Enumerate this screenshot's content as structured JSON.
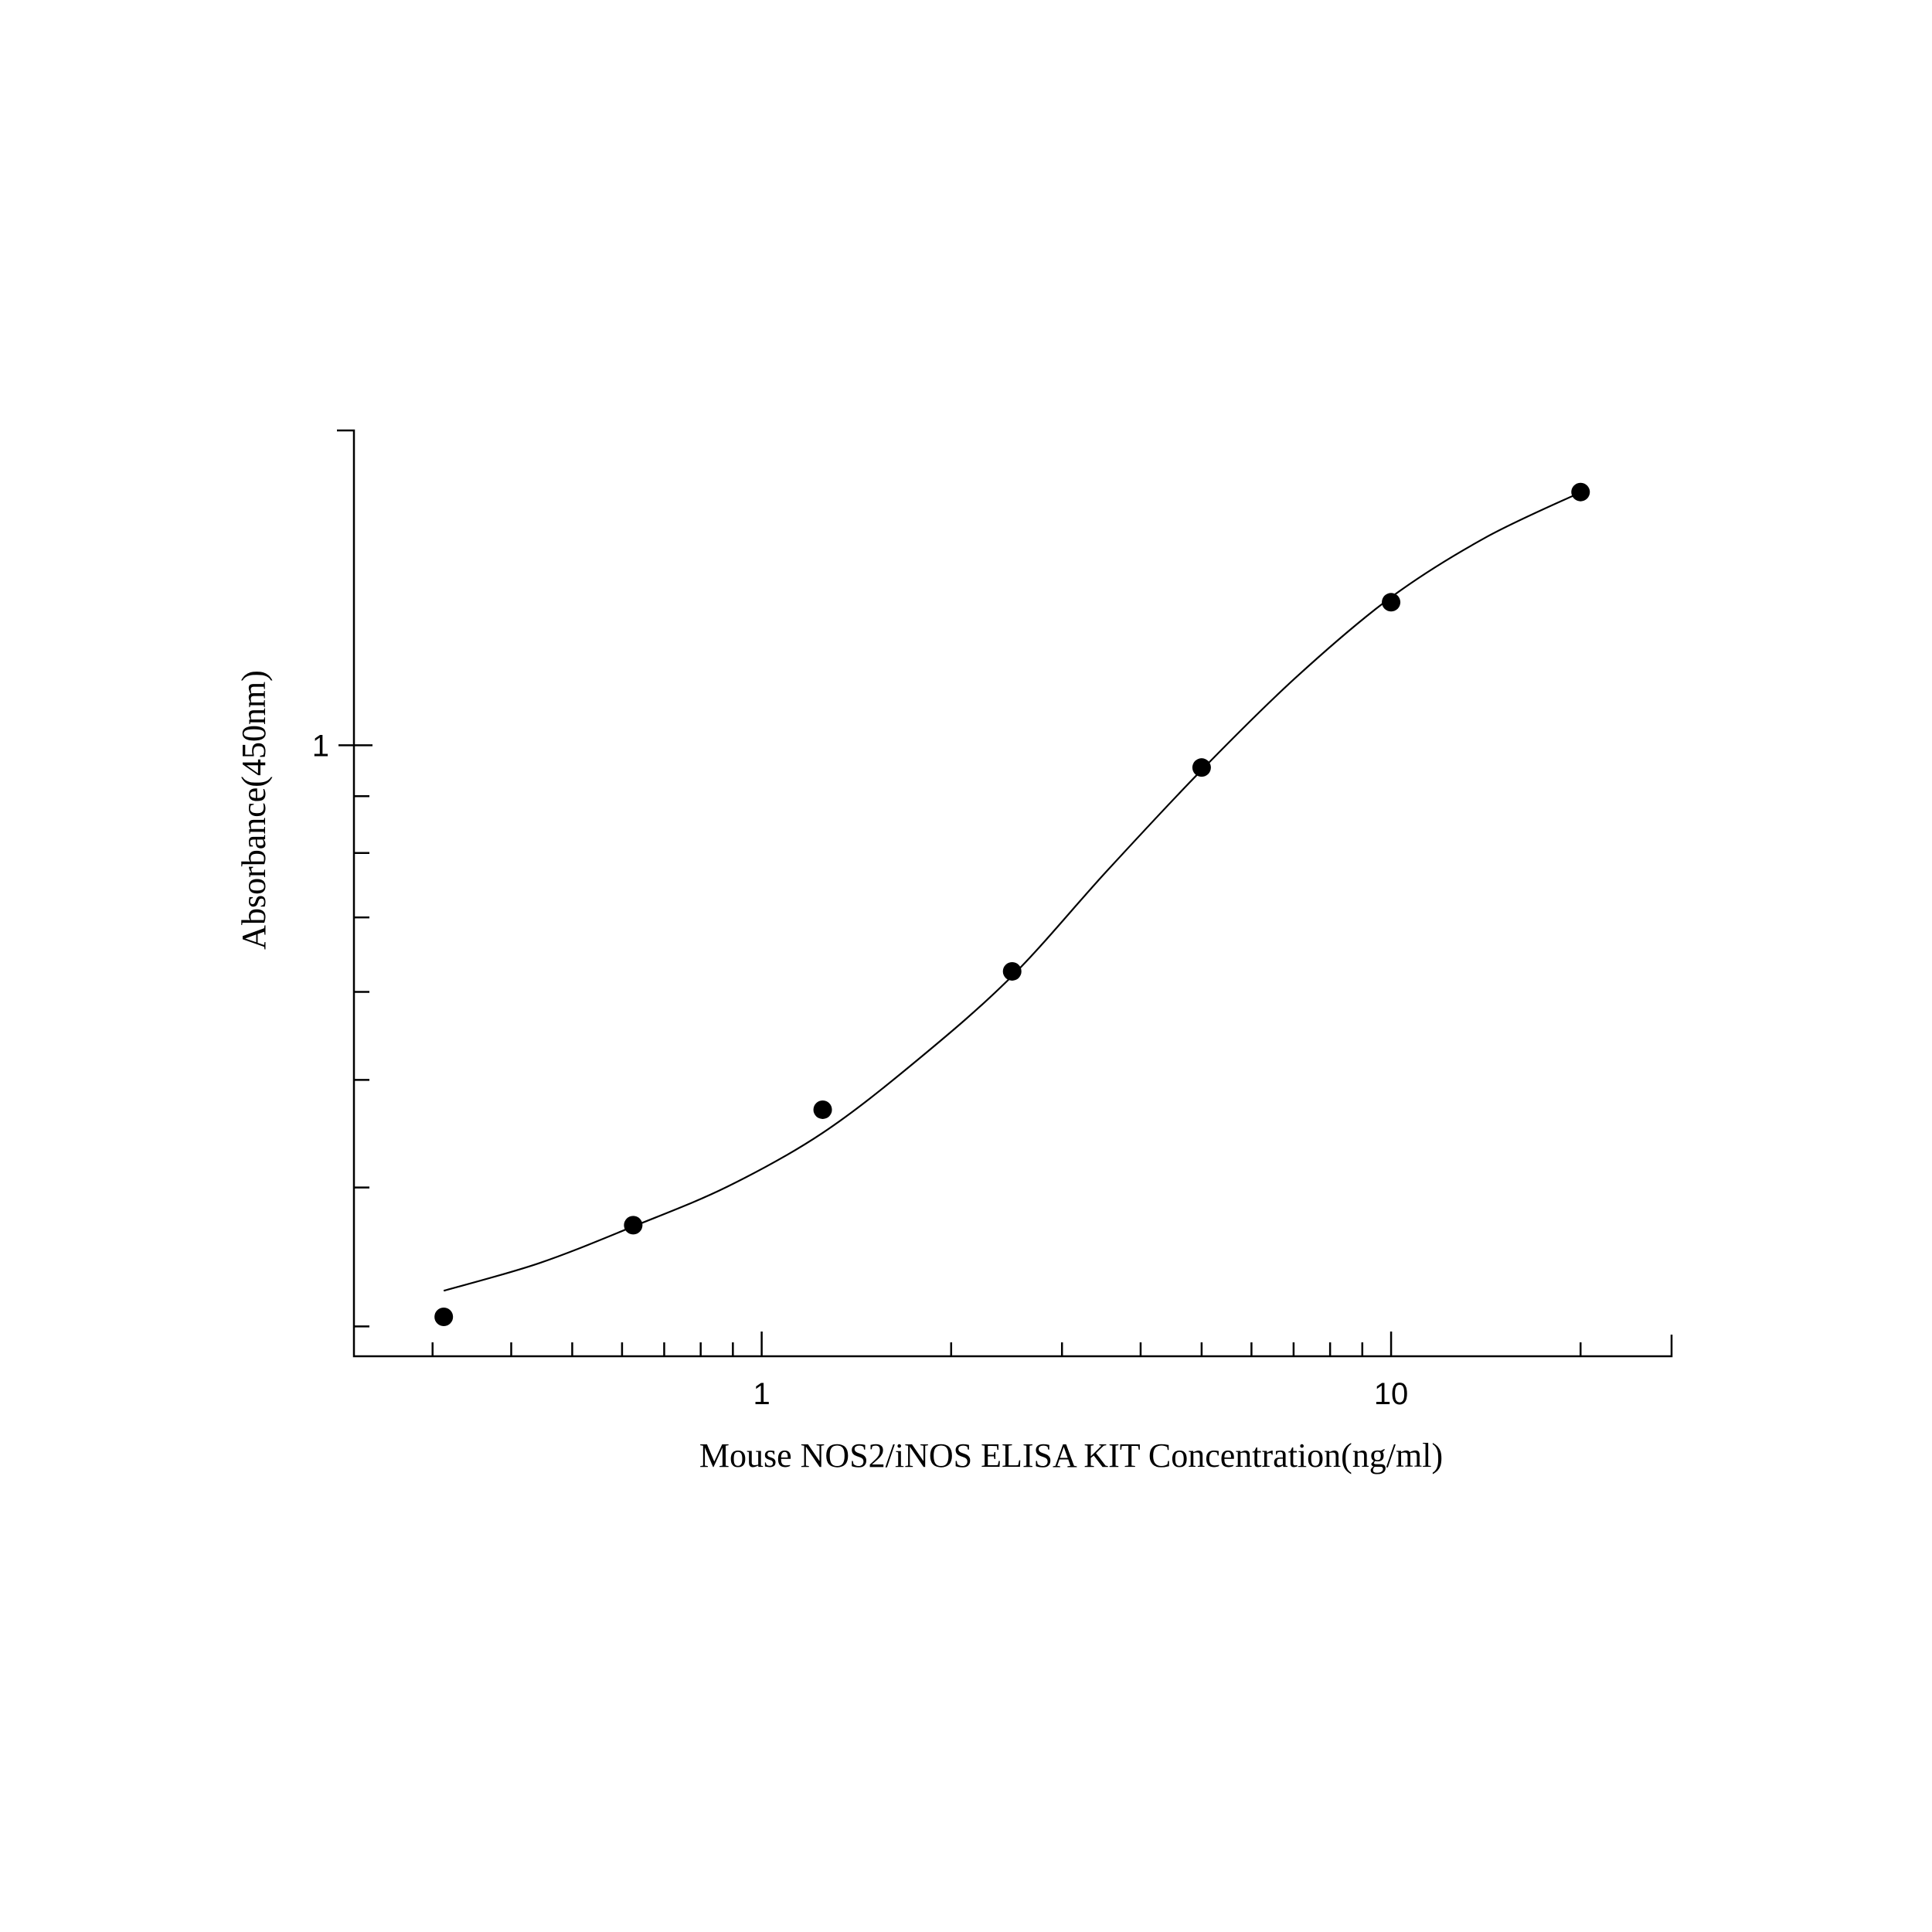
{
  "chart_data": {
    "type": "scatter",
    "xlabel": "Mouse NOS2/iNOS ELISA KIT Concentration(ng/ml)",
    "ylabel": "Absorbance(450nm)",
    "xscale": "log",
    "yscale": "log",
    "xlim": [
      0.225,
      27.9
    ],
    "ylim": [
      0.282,
      1.92
    ],
    "xticks": [
      1,
      10
    ],
    "yticks": [
      1
    ],
    "series": [
      {
        "color": "#000000",
        "x": [
          0.3125,
          0.625,
          1.25,
          2.5,
          5,
          10,
          20
        ],
        "values": [
          0.306,
          0.37,
          0.47,
          0.626,
          0.955,
          1.345,
          1.69
        ]
      },
      {
        "color": "#000000",
        "line": true,
        "x": [
          0.3125,
          0.443,
          0.625,
          0.884,
          1.25,
          1.768,
          2.5,
          3.53,
          5,
          7.06,
          10,
          14.1,
          20
        ],
        "values": [
          0.323,
          0.342,
          0.369,
          0.401,
          0.448,
          0.521,
          0.62,
          0.77,
          0.95,
          1.151,
          1.359,
          1.537,
          1.689
        ]
      }
    ]
  }
}
